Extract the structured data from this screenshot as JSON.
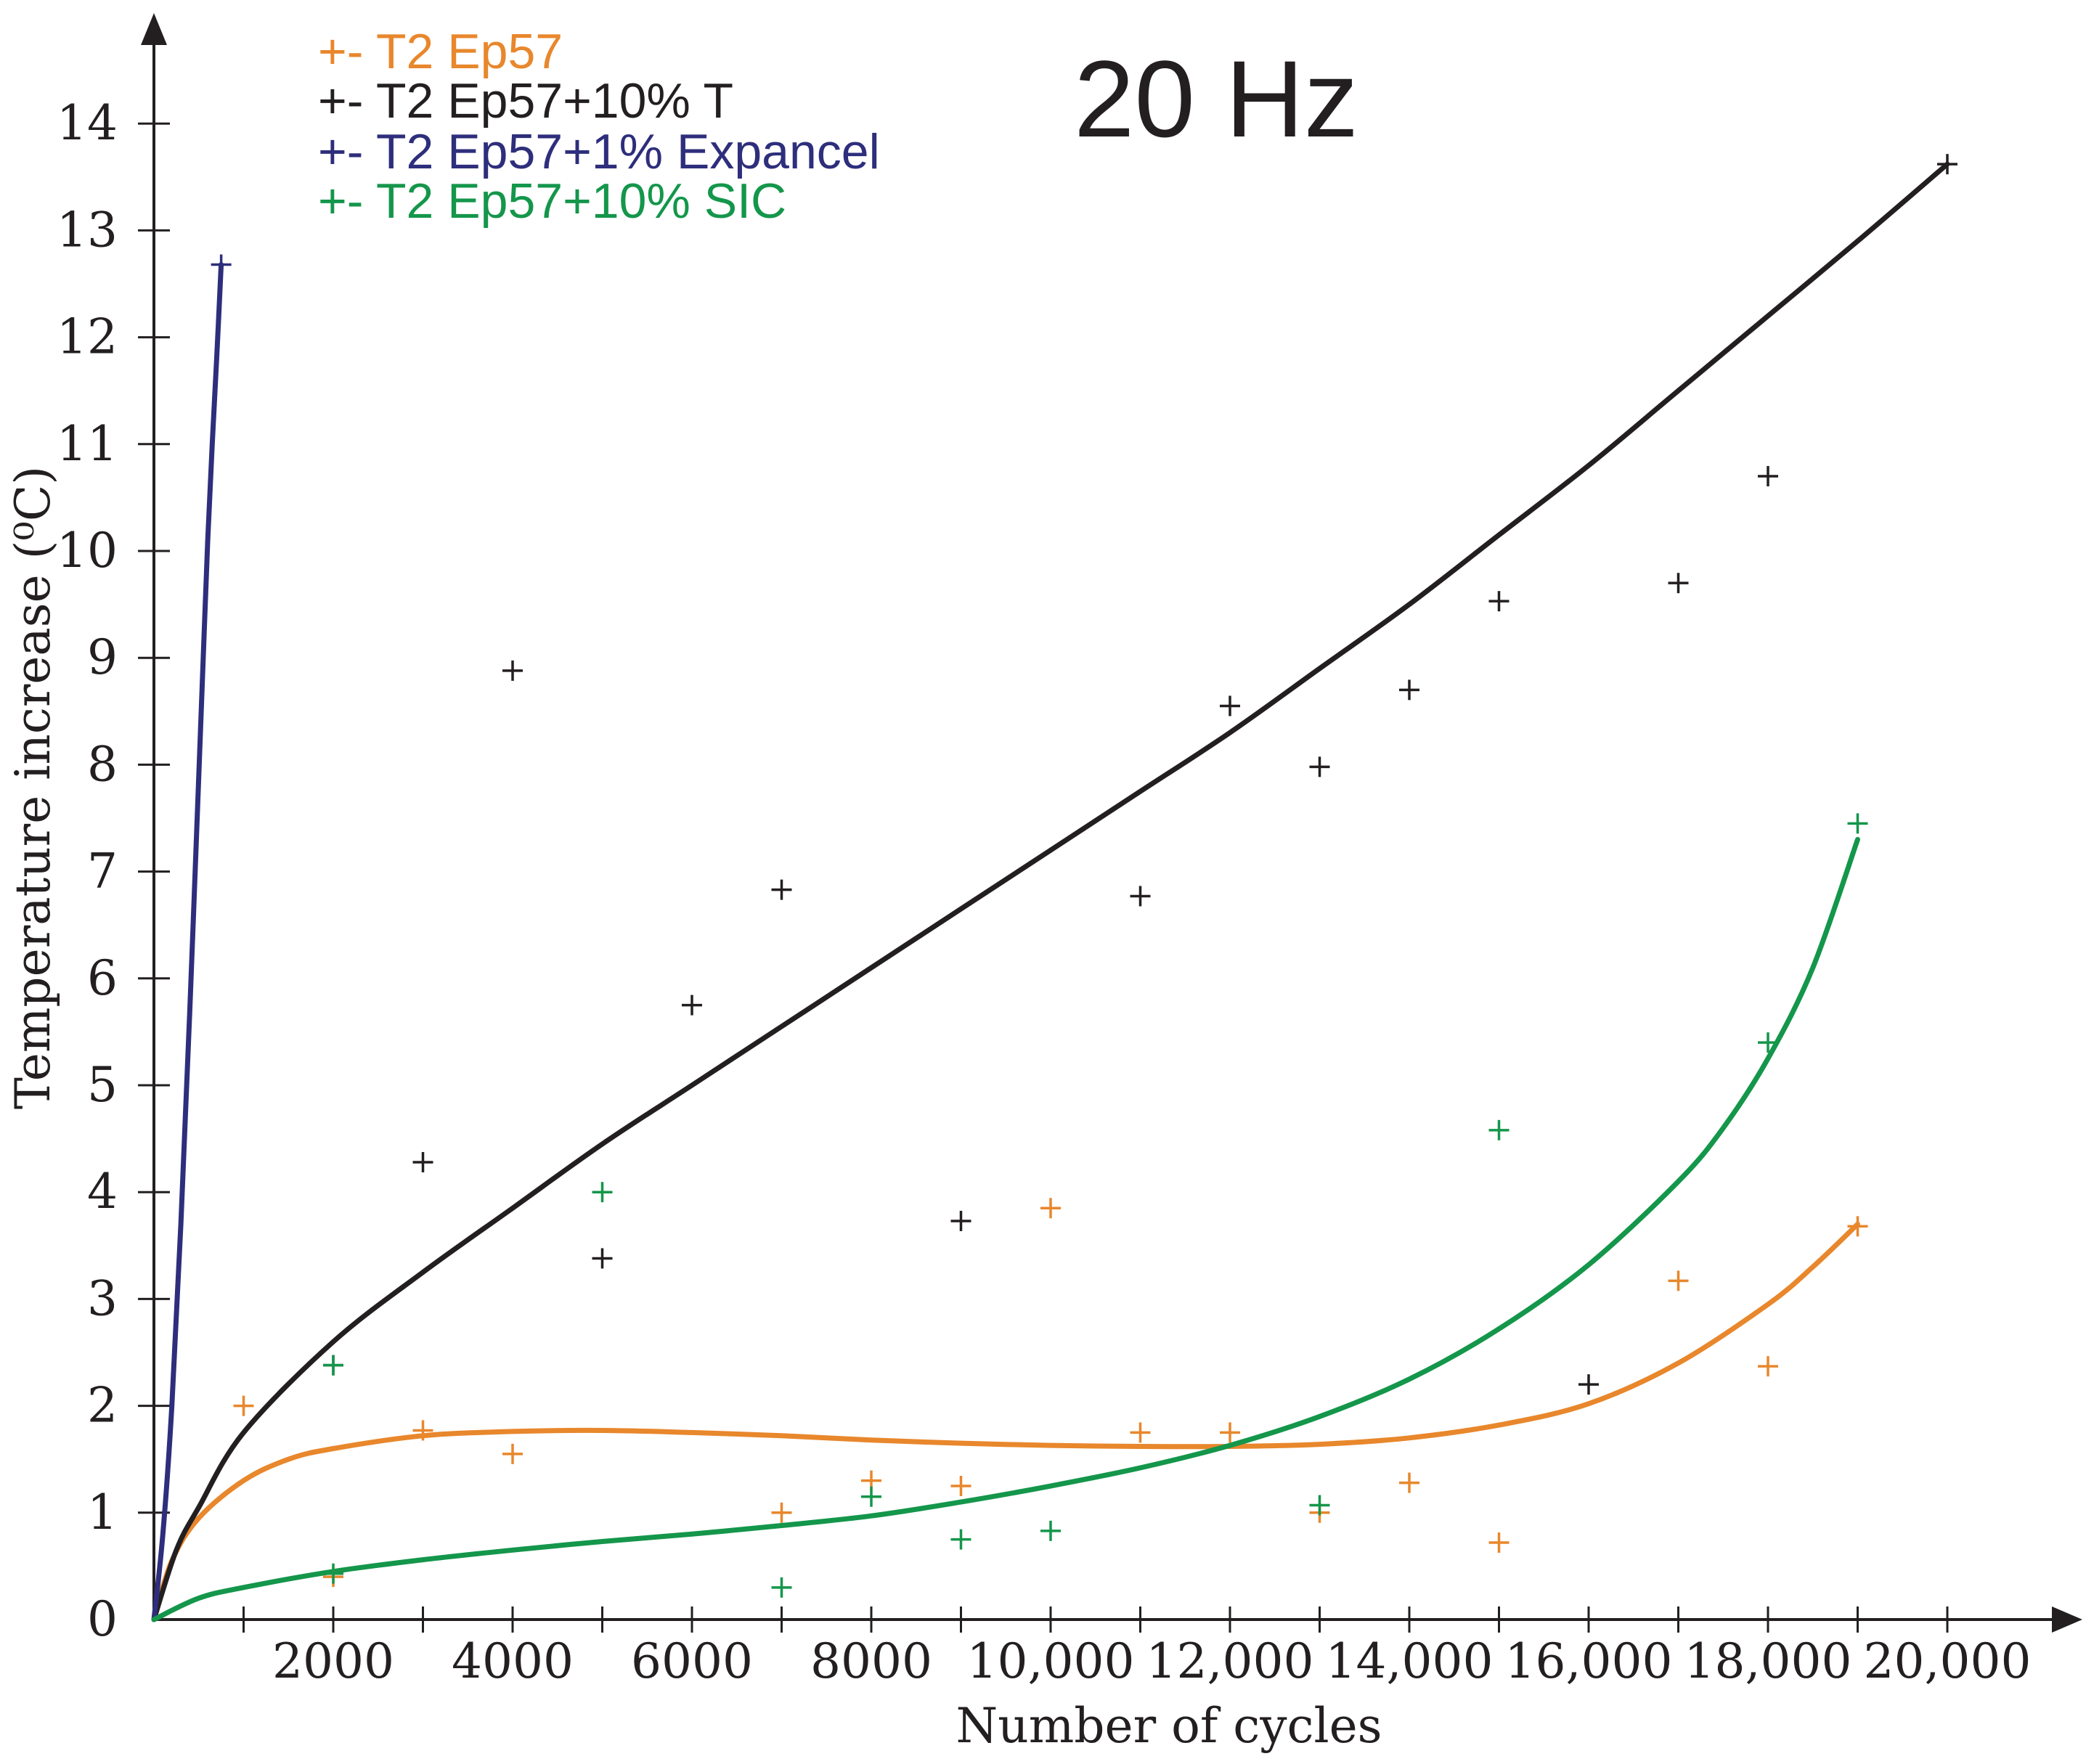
{
  "chart_data": {
    "type": "scatter",
    "title": "20 Hz",
    "xlabel": "Number of cycles",
    "ylabel": "Temperature increase (⁰C)",
    "xlim": [
      0,
      21000
    ],
    "ylim": [
      0,
      14.5
    ],
    "x_ticks": [
      1000,
      2000,
      3000,
      4000,
      5000,
      6000,
      7000,
      8000,
      9000,
      10000,
      11000,
      12000,
      13000,
      14000,
      15000,
      16000,
      17000,
      18000,
      19000,
      20000
    ],
    "x_tick_labels": [
      "2000",
      "4000",
      "6000",
      "8000",
      "10,000",
      "12,000",
      "14,000",
      "16,000",
      "18,000",
      "20,000"
    ],
    "x_tick_label_positions": [
      2000,
      4000,
      6000,
      8000,
      10000,
      12000,
      14000,
      16000,
      18000,
      20000
    ],
    "y_ticks": [
      0,
      1,
      2,
      3,
      4,
      5,
      6,
      7,
      8,
      9,
      10,
      11,
      12,
      13,
      14
    ],
    "y_tick_labels": [
      "0",
      "1",
      "2",
      "3",
      "4",
      "5",
      "6",
      "7",
      "8",
      "9",
      "10",
      "11",
      "12",
      "13",
      "14"
    ],
    "legend_position": "top-left",
    "series": [
      {
        "name": "T2 Ep57",
        "legend_label": "+- T2 Ep57",
        "color": "#e8872c",
        "points": [
          [
            1000,
            2.0
          ],
          [
            2000,
            0.4
          ],
          [
            3000,
            1.77
          ],
          [
            4000,
            1.55
          ],
          [
            7000,
            1.0
          ],
          [
            8000,
            1.3
          ],
          [
            9000,
            1.25
          ],
          [
            10000,
            3.85
          ],
          [
            11000,
            1.75
          ],
          [
            12000,
            1.75
          ],
          [
            13000,
            1.0
          ],
          [
            14000,
            1.28
          ],
          [
            15000,
            0.72
          ],
          [
            17000,
            3.17
          ],
          [
            18000,
            2.37
          ],
          [
            19000,
            3.68
          ]
        ],
        "curve": [
          [
            0,
            0
          ],
          [
            200,
            0.55
          ],
          [
            500,
            0.95
          ],
          [
            1000,
            1.3
          ],
          [
            1500,
            1.5
          ],
          [
            2000,
            1.6
          ],
          [
            3000,
            1.72
          ],
          [
            4000,
            1.76
          ],
          [
            5000,
            1.77
          ],
          [
            6000,
            1.75
          ],
          [
            7000,
            1.72
          ],
          [
            8000,
            1.68
          ],
          [
            9000,
            1.65
          ],
          [
            10000,
            1.63
          ],
          [
            11000,
            1.62
          ],
          [
            12000,
            1.62
          ],
          [
            13000,
            1.64
          ],
          [
            14000,
            1.7
          ],
          [
            15000,
            1.82
          ],
          [
            16000,
            2.02
          ],
          [
            17000,
            2.4
          ],
          [
            18000,
            2.95
          ],
          [
            18500,
            3.3
          ],
          [
            19000,
            3.7
          ]
        ]
      },
      {
        "name": "T2 Ep57+10% T",
        "legend_label": "+- T2 Ep57+10% T",
        "color": "#231f20",
        "points": [
          [
            2000,
            2.38
          ],
          [
            3000,
            4.28
          ],
          [
            4000,
            8.88
          ],
          [
            5000,
            3.38
          ],
          [
            6000,
            5.75
          ],
          [
            7000,
            6.83
          ],
          [
            9000,
            3.73
          ],
          [
            11000,
            6.77
          ],
          [
            12000,
            8.55
          ],
          [
            13000,
            7.98
          ],
          [
            14000,
            8.7
          ],
          [
            15000,
            9.53
          ],
          [
            16000,
            2.2
          ],
          [
            17000,
            9.7
          ],
          [
            18000,
            10.7
          ],
          [
            20000,
            13.62
          ]
        ],
        "curve": [
          [
            0,
            0
          ],
          [
            250,
            0.65
          ],
          [
            500,
            1.05
          ],
          [
            1000,
            1.75
          ],
          [
            2000,
            2.6
          ],
          [
            3000,
            3.25
          ],
          [
            4000,
            3.85
          ],
          [
            5000,
            4.45
          ],
          [
            6000,
            5.0
          ],
          [
            7000,
            5.55
          ],
          [
            8000,
            6.1
          ],
          [
            9000,
            6.65
          ],
          [
            10000,
            7.2
          ],
          [
            11000,
            7.75
          ],
          [
            12000,
            8.3
          ],
          [
            13000,
            8.9
          ],
          [
            14000,
            9.5
          ],
          [
            15000,
            10.15
          ],
          [
            16000,
            10.8
          ],
          [
            17000,
            11.5
          ],
          [
            18000,
            12.2
          ],
          [
            19000,
            12.9
          ],
          [
            20000,
            13.62
          ]
        ]
      },
      {
        "name": "T2 Ep57+1% Expancel",
        "legend_label": "+- T2 Ep57+1% Expancel",
        "color": "#2e2e7c",
        "points": [
          [
            750,
            12.68
          ]
        ],
        "curve": [
          [
            0,
            0
          ],
          [
            100,
            0.8
          ],
          [
            200,
            2.0
          ],
          [
            300,
            3.7
          ],
          [
            400,
            5.7
          ],
          [
            500,
            7.9
          ],
          [
            550,
            9.0
          ],
          [
            600,
            10.1
          ],
          [
            650,
            11.0
          ],
          [
            700,
            11.8
          ],
          [
            750,
            12.68
          ]
        ]
      },
      {
        "name": "T2 Ep57+10% SIC",
        "legend_label": "+- T2 Ep57+10% SIC",
        "color": "#14964b",
        "points": [
          [
            2000,
            2.38
          ],
          [
            2000,
            0.43
          ],
          [
            5000,
            4.0
          ],
          [
            7000,
            0.3
          ],
          [
            8000,
            1.15
          ],
          [
            9000,
            0.75
          ],
          [
            10000,
            0.83
          ],
          [
            13000,
            1.07
          ],
          [
            15000,
            4.58
          ],
          [
            18000,
            5.4
          ],
          [
            19000,
            7.45
          ]
        ],
        "curve": [
          [
            0,
            0
          ],
          [
            500,
            0.2
          ],
          [
            1000,
            0.3
          ],
          [
            2000,
            0.45
          ],
          [
            3000,
            0.56
          ],
          [
            4000,
            0.65
          ],
          [
            5000,
            0.73
          ],
          [
            6000,
            0.8
          ],
          [
            7000,
            0.88
          ],
          [
            8000,
            0.97
          ],
          [
            9000,
            1.1
          ],
          [
            10000,
            1.25
          ],
          [
            11000,
            1.42
          ],
          [
            12000,
            1.63
          ],
          [
            13000,
            1.9
          ],
          [
            14000,
            2.25
          ],
          [
            15000,
            2.72
          ],
          [
            16000,
            3.32
          ],
          [
            17000,
            4.1
          ],
          [
            17500,
            4.6
          ],
          [
            18000,
            5.25
          ],
          [
            18500,
            6.1
          ],
          [
            19000,
            7.3
          ]
        ]
      }
    ]
  }
}
